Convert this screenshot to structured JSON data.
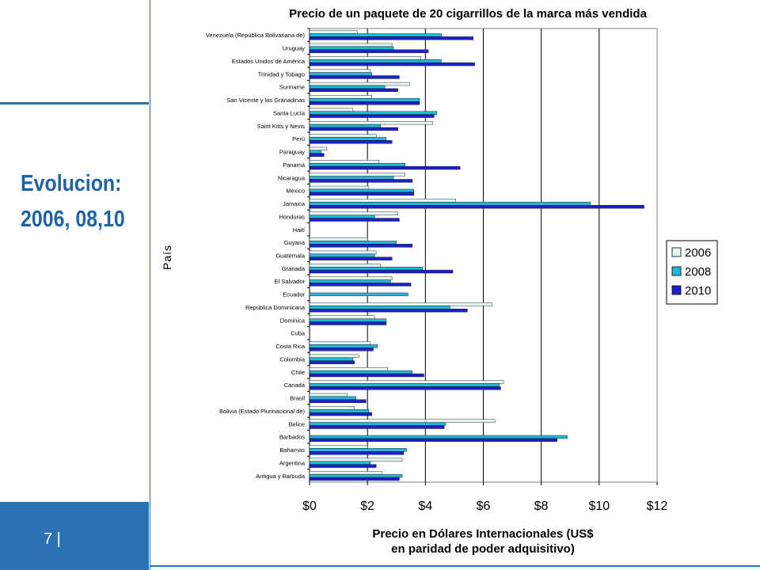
{
  "slide": {
    "heading_line1": "Evolucion:",
    "heading_line2": "2006, 08,10",
    "page_number": "7 |"
  },
  "chart_data": {
    "type": "bar",
    "orientation": "horizontal",
    "title": "Precio de un paquete de 20 cigarrillos de la marca más vendida",
    "xlabel_line1": "Precio en Dólares Internacionales (US$",
    "xlabel_line2": "en paridad de poder adquisitivo)",
    "ylabel": "País",
    "xlim": [
      0,
      12
    ],
    "xticks": [
      "$0",
      "$2",
      "$4",
      "$6",
      "$8",
      "$10",
      "$12"
    ],
    "grid": "vertical",
    "legend": "right",
    "categories": [
      "Venezuela (República Bolivariana de)",
      "Uruguay",
      "Estados Unidos de América",
      "Trinidad y Tobago",
      "Suriname",
      "San Vicente y las Granadinas",
      "Santa Lucía",
      "Saint Kitts y Nevis",
      "Perú",
      "Paraguay",
      "Panamá",
      "Nicaragua",
      "México",
      "Jamaica",
      "Honduras",
      "Haití",
      "Guyana",
      "Guatemala",
      "Granada",
      "El Salvador",
      "Ecuador",
      "República Dominicana",
      "Dominica",
      "Cuba",
      "Costa Rica",
      "Colombia",
      "Chile",
      "Canadá",
      "Brasil",
      "Bolivia (Estado Plurinacional de)",
      "Belice",
      "Barbados",
      "Bahamas",
      "Argentina",
      "Antigua y Barbuda"
    ],
    "series": [
      {
        "name": "2006",
        "color": "#e6f7f7",
        "values": [
          1.65,
          2.85,
          3.85,
          2.1,
          3.45,
          2.15,
          1.5,
          4.25,
          2.3,
          0.6,
          2.4,
          3.3,
          2.05,
          5.05,
          3.05,
          0,
          2.0,
          2.3,
          2.45,
          2.85,
          0,
          6.3,
          2.25,
          0,
          2.1,
          1.7,
          2.7,
          6.7,
          1.3,
          1.55,
          6.4,
          0,
          2.0,
          3.2,
          2.5
        ]
      },
      {
        "name": "2008",
        "color": "#22b8d6",
        "values": [
          4.55,
          2.9,
          4.55,
          2.15,
          2.6,
          3.8,
          4.4,
          2.45,
          2.65,
          0.4,
          3.3,
          2.9,
          3.6,
          9.7,
          2.25,
          0,
          3.0,
          2.25,
          3.9,
          2.8,
          3.4,
          4.85,
          2.65,
          0,
          2.35,
          1.5,
          3.55,
          6.55,
          1.6,
          2.05,
          4.7,
          8.9,
          3.35,
          2.1,
          3.2
        ]
      },
      {
        "name": "2010",
        "color": "#1c22c8",
        "values": [
          5.65,
          4.1,
          5.7,
          3.1,
          3.05,
          3.8,
          4.3,
          3.05,
          2.85,
          0.5,
          5.2,
          3.55,
          3.6,
          11.55,
          3.1,
          0,
          3.55,
          2.85,
          4.95,
          3.5,
          0,
          5.45,
          2.65,
          0,
          2.2,
          1.55,
          3.95,
          6.6,
          1.95,
          2.15,
          4.65,
          8.55,
          3.25,
          2.3,
          3.1
        ]
      }
    ]
  }
}
